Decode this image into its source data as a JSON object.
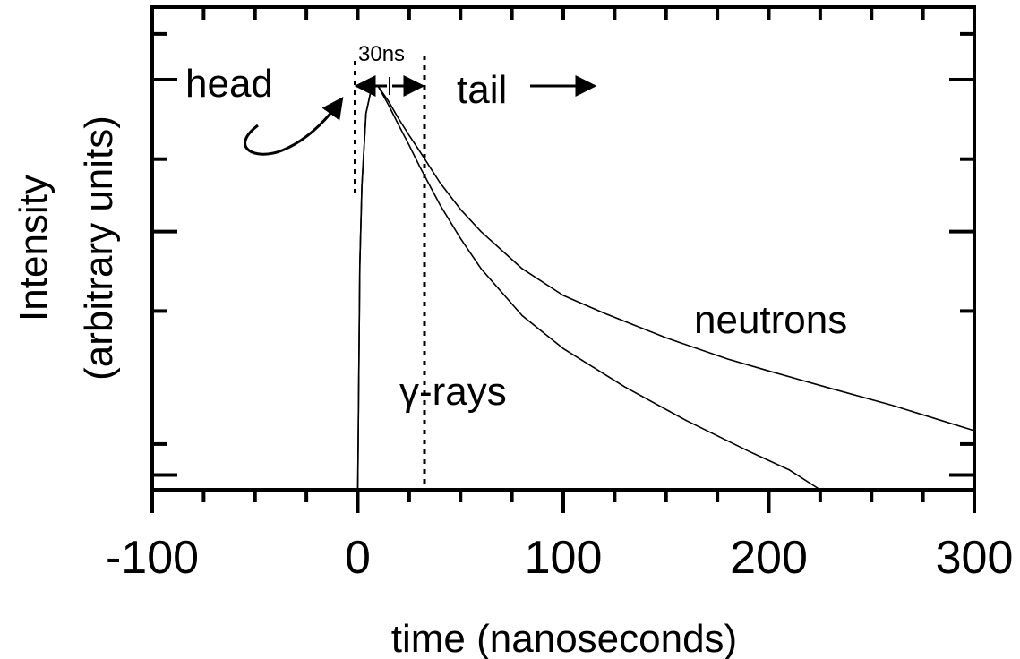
{
  "chart_data": {
    "type": "line",
    "title": "",
    "xlabel": "time (nanoseconds)",
    "ylabel_line1": "Intensity",
    "ylabel_line2": "(arbitrary units)",
    "xlim": [
      -100,
      300
    ],
    "y_scale": "log",
    "ylim": [
      0.002,
      3
    ],
    "x_ticks": [
      -100,
      0,
      100,
      200,
      300
    ],
    "x_tick_labels": [
      "-100",
      "0",
      "100",
      "200",
      "300"
    ],
    "x_minor_step": 25,
    "y_major_ticks": [
      0.0025,
      0.1,
      1
    ],
    "y_minor_ticks": [
      0.004,
      0.03,
      0.3,
      2
    ],
    "grid": false,
    "series": [
      {
        "name": "neutrons",
        "x": [
          0,
          1,
          2,
          4,
          7,
          10,
          15,
          20,
          25,
          30,
          40,
          50,
          60,
          80,
          100,
          120,
          150,
          180,
          200,
          230,
          260,
          300
        ],
        "y": [
          0.002,
          0.06,
          0.2,
          0.6,
          0.92,
          0.9,
          0.72,
          0.55,
          0.43,
          0.34,
          0.21,
          0.14,
          0.1,
          0.057,
          0.038,
          0.029,
          0.02,
          0.0145,
          0.0121,
          0.0093,
          0.0072,
          0.0049
        ]
      },
      {
        "name": "γ-rays",
        "x": [
          0,
          1,
          2,
          4,
          7,
          10,
          15,
          20,
          25,
          30,
          40,
          50,
          60,
          80,
          100,
          130,
          160,
          190,
          210,
          225
        ],
        "y": [
          0.002,
          0.06,
          0.2,
          0.6,
          0.92,
          0.9,
          0.68,
          0.5,
          0.37,
          0.27,
          0.15,
          0.09,
          0.057,
          0.028,
          0.017,
          0.0095,
          0.0057,
          0.0036,
          0.0027,
          0.002
        ]
      }
    ],
    "annotations": {
      "head": "head",
      "tail": "tail",
      "window": "30ns",
      "neutrons": "neutrons",
      "gamma": "γ-rays"
    },
    "markers": {
      "head_line_x": -1,
      "window_line_x": 33
    }
  }
}
